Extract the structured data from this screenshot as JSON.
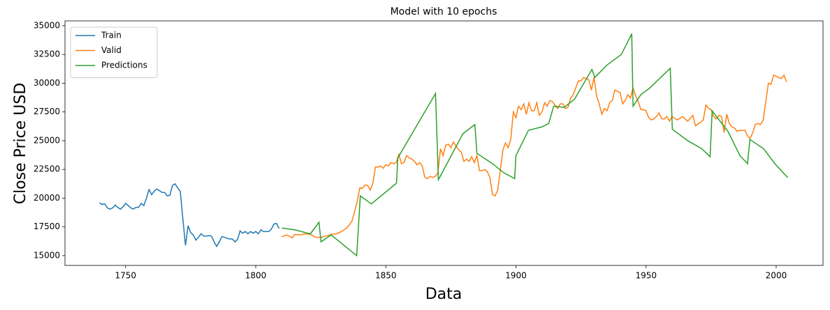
{
  "chart_data": {
    "type": "line",
    "title": "Model with 10 epochs",
    "x_label": "Data",
    "y_label": "Close Price USD",
    "xlim": [
      1726.7,
      2018.0
    ],
    "ylim": [
      14150,
      35420
    ],
    "xticks": [
      1750,
      1800,
      1850,
      1900,
      1950,
      2000
    ],
    "yticks": [
      15000,
      17500,
      20000,
      22500,
      25000,
      27500,
      30000,
      32500,
      35000
    ],
    "legend": "upper left",
    "grid": false,
    "series": [
      {
        "name": "Train",
        "color": "#1f77b4",
        "x": [
          1740,
          1741,
          1742,
          1743,
          1744,
          1745,
          1746,
          1747,
          1748,
          1749,
          1750,
          1751,
          1752,
          1753,
          1754,
          1755,
          1756,
          1757,
          1758,
          1759,
          1760,
          1761,
          1762,
          1763,
          1764,
          1765,
          1766,
          1767,
          1768,
          1769,
          1770,
          1771,
          1772,
          1773,
          1774,
          1775,
          1776,
          1777,
          1778,
          1779,
          1780,
          1781,
          1782,
          1783,
          1784,
          1785,
          1786,
          1787,
          1788,
          1789,
          1790,
          1791,
          1792,
          1793,
          1794,
          1795,
          1796,
          1797,
          1798,
          1799,
          1800,
          1801,
          1802,
          1803,
          1804,
          1805,
          1806,
          1807,
          1808,
          1809
        ],
        "values": [
          19600,
          19450,
          19500,
          19150,
          19050,
          19150,
          19400,
          19200,
          19050,
          19250,
          19550,
          19350,
          19150,
          19050,
          19200,
          19200,
          19550,
          19350,
          20000,
          20750,
          20300,
          20600,
          20800,
          20650,
          20500,
          20500,
          20200,
          20250,
          21100,
          21250,
          20900,
          20600,
          18200,
          15900,
          17600,
          17000,
          16800,
          16350,
          16600,
          16900,
          16700,
          16700,
          16750,
          16700,
          16200,
          15800,
          16200,
          16650,
          16600,
          16500,
          16450,
          16450,
          16200,
          16400,
          17150,
          16950,
          17100,
          16900,
          17100,
          16950,
          17100,
          16900,
          17250,
          17100,
          17100,
          17100,
          17300,
          17750,
          17800,
          17350
        ]
      },
      {
        "name": "Valid",
        "color": "#ff7f0e",
        "x": [
          1810,
          1812,
          1814,
          1815,
          1817,
          1819,
          1821,
          1823,
          1825,
          1827,
          1829,
          1831,
          1833,
          1835,
          1837,
          1839,
          1840,
          1841,
          1842,
          1843,
          1844,
          1845,
          1846,
          1847,
          1848,
          1849,
          1850,
          1851,
          1852,
          1853,
          1854,
          1855,
          1856,
          1857,
          1858,
          1859,
          1860,
          1861,
          1862,
          1863,
          1864,
          1865,
          1866,
          1867,
          1868,
          1869,
          1870,
          1871,
          1872,
          1873,
          1874,
          1875,
          1876,
          1877,
          1878,
          1879,
          1880,
          1881,
          1882,
          1883,
          1884,
          1885,
          1886,
          1887,
          1888,
          1889,
          1890,
          1891,
          1892,
          1893,
          1895,
          1896,
          1897,
          1898,
          1899,
          1900,
          1901,
          1902,
          1903,
          1904,
          1905,
          1906,
          1907,
          1908,
          1909,
          1910,
          1911,
          1912,
          1913,
          1914,
          1915,
          1916,
          1917,
          1918,
          1919,
          1920,
          1921,
          1922,
          1923,
          1924,
          1925,
          1926,
          1927,
          1928,
          1929,
          1930,
          1931,
          1932,
          1933,
          1934,
          1935,
          1936,
          1937,
          1938,
          1939,
          1940,
          1941,
          1942,
          1943,
          1944,
          1945,
          1946,
          1947,
          1948,
          1949,
          1950,
          1951,
          1952,
          1953,
          1954,
          1955,
          1956,
          1957,
          1958,
          1959,
          1960,
          1962,
          1964,
          1966,
          1968,
          1969,
          1971,
          1972,
          1973,
          1974,
          1975,
          1976,
          1977,
          1978,
          1979,
          1980,
          1981,
          1982,
          1983,
          1984,
          1985,
          1986,
          1987,
          1988,
          1989,
          1990,
          1991,
          1992,
          1993,
          1994,
          1995,
          1996,
          1997,
          1998,
          1999,
          2000,
          2001,
          2002,
          2003,
          2004
        ],
        "values": [
          16650,
          16800,
          16550,
          16850,
          16800,
          16900,
          16850,
          16600,
          16600,
          16700,
          16850,
          16900,
          17100,
          17400,
          18000,
          19700,
          20900,
          20850,
          21150,
          21100,
          20700,
          21300,
          22700,
          22700,
          22800,
          22600,
          22900,
          22800,
          23100,
          23000,
          23100,
          23800,
          23000,
          23100,
          23700,
          23500,
          23400,
          23200,
          22900,
          23100,
          22800,
          21800,
          21700,
          21900,
          21800,
          21900,
          22200,
          24300,
          23700,
          24600,
          24700,
          24400,
          24900,
          24500,
          24200,
          24000,
          23200,
          23400,
          23200,
          23600,
          23100,
          23700,
          22400,
          22400,
          22500,
          22300,
          21800,
          20300,
          20200,
          20700,
          24200,
          24800,
          24400,
          25100,
          27500,
          27000,
          28000,
          27700,
          28200,
          27300,
          28300,
          27600,
          27600,
          28300,
          27200,
          27500,
          28300,
          28000,
          28500,
          28400,
          28100,
          27800,
          28200,
          28200,
          27800,
          27900,
          28700,
          29000,
          29600,
          30200,
          30200,
          30500,
          30400,
          30300,
          29400,
          30500,
          28900,
          28200,
          27300,
          27800,
          27600,
          28300,
          28500,
          29400,
          29300,
          29200,
          28200,
          28500,
          29000,
          28700,
          29600,
          28900,
          28400,
          27700,
          27700,
          27600,
          27000,
          26800,
          26900,
          27100,
          27400,
          26900,
          26900,
          27100,
          26700,
          27100,
          26800,
          27100,
          26700,
          27200,
          26300,
          26600,
          26800,
          28100,
          27800,
          27700,
          27100,
          26900,
          27200,
          27100,
          25700,
          27300,
          26500,
          26200,
          26100,
          25800,
          25900,
          25900,
          25900,
          25400,
          25200,
          25700,
          26400,
          26500,
          26400,
          26800,
          28400,
          30000,
          29900,
          30700,
          30600,
          30500,
          30400,
          30700,
          30100
        ]
      },
      {
        "name": "Predictions",
        "color": "#2ca02c",
        "x": [
          1810,
          1815,
          1820,
          1821,
          1824.3,
          1825.1,
          1829,
          1838.8,
          1840.2,
          1844.4,
          1854.1,
          1854.6,
          1869.1,
          1870.2,
          1879.6,
          1884.2,
          1885,
          1891,
          1895.4,
          1899.5,
          1900,
          1904.8,
          1910,
          1912.6,
          1914.5,
          1918.5,
          1922.5,
          1929.2,
          1930.3,
          1935.1,
          1940.5,
          1944.5,
          1945,
          1948,
          1951.5,
          1959.3,
          1960.1,
          1966,
          1971.4,
          1974.6,
          1975.4,
          1981.5,
          1986.1,
          1989,
          1989.9,
          1995.2,
          1999.5,
          2004.4
        ],
        "values": [
          17400,
          17250,
          16950,
          16900,
          17900,
          16200,
          16800,
          15000,
          20200,
          19500,
          21300,
          23500,
          29100,
          21600,
          25600,
          26400,
          23900,
          23000,
          22200,
          21700,
          23700,
          25900,
          26200,
          26500,
          28000,
          27900,
          28600,
          31200,
          30500,
          31600,
          32500,
          34300,
          28000,
          29000,
          29600,
          31300,
          26000,
          25000,
          24300,
          23600,
          27600,
          25800,
          23700,
          23000,
          25100,
          24300,
          23000,
          21800
        ]
      }
    ]
  }
}
